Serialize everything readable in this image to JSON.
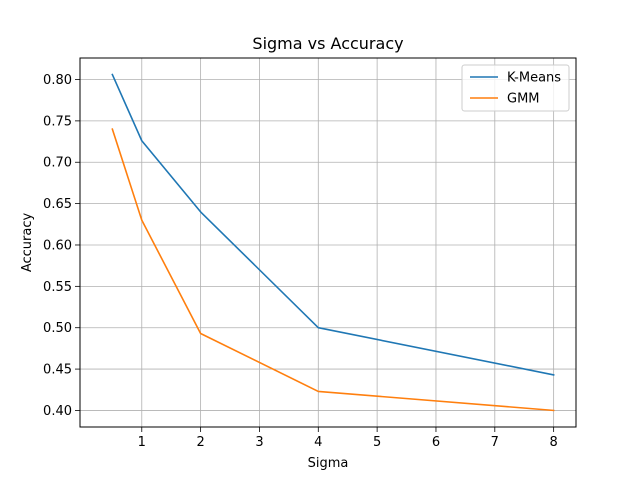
{
  "chart_data": {
    "type": "line",
    "title": "Sigma vs Accuracy",
    "xlabel": "Sigma",
    "ylabel": "Accuracy",
    "xlim": [
      -0.05,
      8.38
    ],
    "ylim": [
      0.38,
      0.826
    ],
    "xticks": [
      1,
      2,
      3,
      4,
      5,
      6,
      7,
      8
    ],
    "yticks": [
      0.4,
      0.45,
      0.5,
      0.55,
      0.6,
      0.65,
      0.7,
      0.75,
      0.8
    ],
    "grid": true,
    "legend_position": "top-right",
    "series": [
      {
        "name": "K-Means",
        "color": "#1f77b4",
        "x": [
          0.5,
          1,
          2,
          4,
          8
        ],
        "y": [
          0.806,
          0.726,
          0.64,
          0.5,
          0.443
        ]
      },
      {
        "name": "GMM",
        "color": "#ff7f0e",
        "x": [
          0.5,
          1,
          2,
          4,
          8
        ],
        "y": [
          0.74,
          0.63,
          0.493,
          0.423,
          0.4
        ]
      }
    ]
  }
}
